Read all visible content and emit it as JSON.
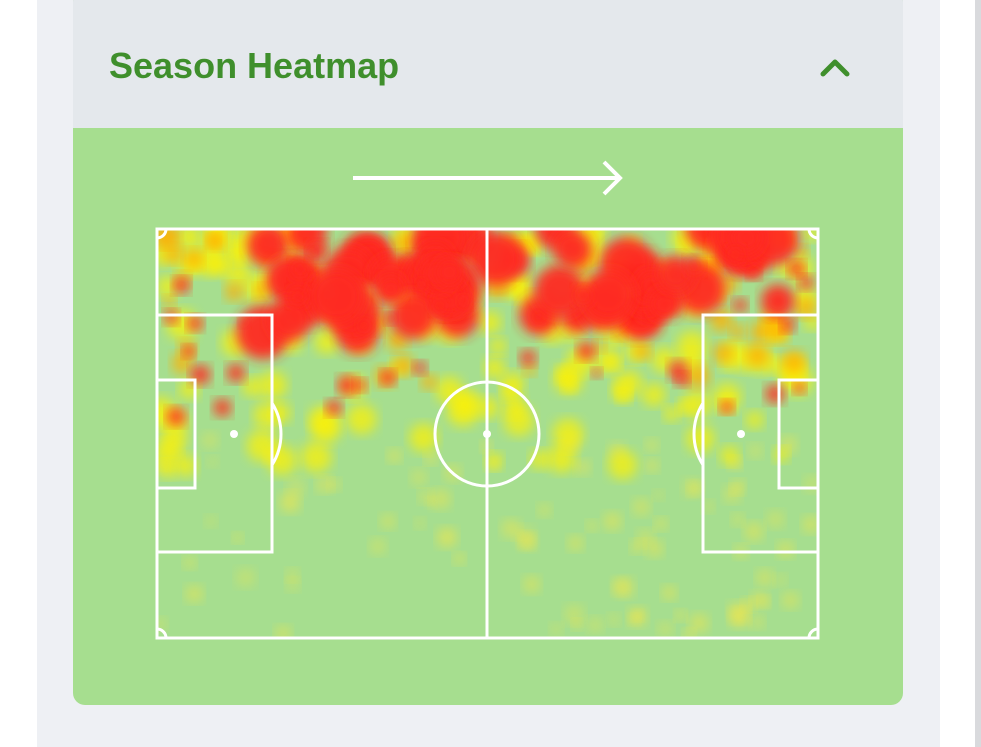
{
  "header": {
    "title": "Season Heatmap"
  }
}
